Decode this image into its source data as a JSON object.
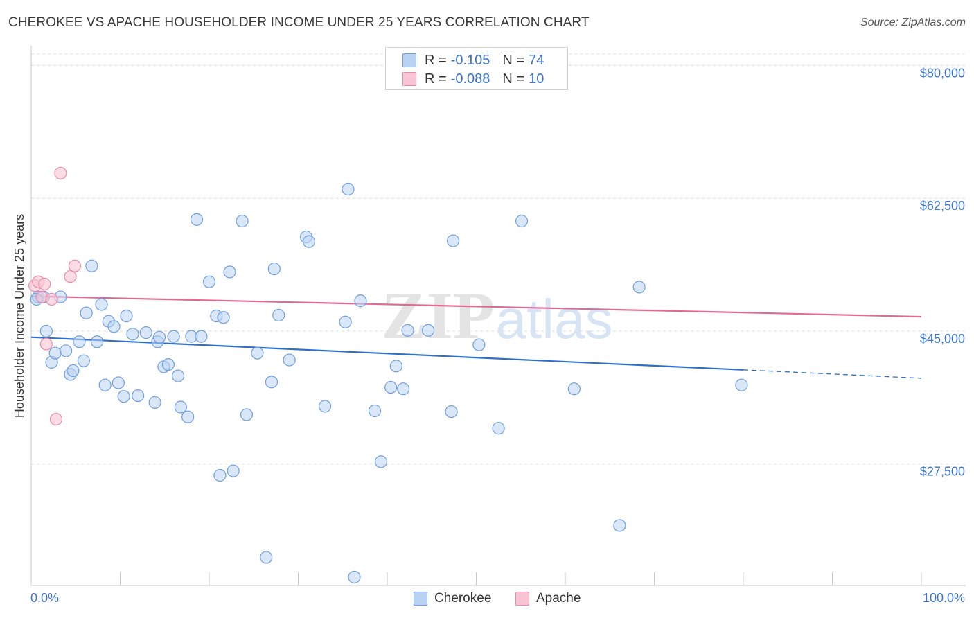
{
  "title": "CHEROKEE VS APACHE HOUSEHOLDER INCOME UNDER 25 YEARS CORRELATION CHART",
  "source": "Source: ZipAtlas.com",
  "watermark": {
    "zip": "ZIP",
    "atlas": "atlas"
  },
  "legend": {
    "cherokee": {
      "r_label": "R =",
      "r_value": "-0.105",
      "n_label": "N =",
      "n_value": "74"
    },
    "apache": {
      "r_label": "R =",
      "r_value": "-0.088",
      "n_label": "N =",
      "n_value": "10"
    }
  },
  "colors": {
    "cherokee_fill": "#b9d3f4",
    "cherokee_stroke": "#6d9ee0",
    "cherokee_line": "#2f6fc8",
    "apache_fill": "#f9c4d4",
    "apache_stroke": "#e98aa8",
    "apache_line": "#e06a94",
    "axis_label": "#3b74c6",
    "grid": "#dcdcdc"
  },
  "chart_data": {
    "type": "scatter",
    "title": "CHEROKEE VS APACHE HOUSEHOLDER INCOME UNDER 25 YEARS CORRELATION CHART",
    "xlabel": "",
    "ylabel": "Householder Income Under 25 years",
    "xlim": [
      0,
      100
    ],
    "ylim": [
      11500,
      81500
    ],
    "x_tick_labels": [
      "0.0%",
      "100.0%"
    ],
    "y_ticks": [
      27500,
      45000,
      62500,
      80000
    ],
    "y_tick_labels": [
      "$27,500",
      "$45,000",
      "$62,500",
      "$80,000"
    ],
    "grid": true,
    "legend_position": "top-center",
    "series": [
      {
        "name": "Cherokee",
        "color": "#6d9ee0",
        "points": [
          [
            0.8,
            49.5
          ],
          [
            1.4,
            49.5
          ],
          [
            1.7,
            45.0
          ],
          [
            2.3,
            40.9
          ],
          [
            2.7,
            42.1
          ],
          [
            3.3,
            49.5
          ],
          [
            3.9,
            42.4
          ],
          [
            4.4,
            39.3
          ],
          [
            4.7,
            39.8
          ],
          [
            5.4,
            43.6
          ],
          [
            5.9,
            41.1
          ],
          [
            6.2,
            47.4
          ],
          [
            6.8,
            53.6
          ],
          [
            7.4,
            43.6
          ],
          [
            7.9,
            48.5
          ],
          [
            8.3,
            37.9
          ],
          [
            8.7,
            46.3
          ],
          [
            9.3,
            45.6
          ],
          [
            9.8,
            38.2
          ],
          [
            10.4,
            36.4
          ],
          [
            10.7,
            47.0
          ],
          [
            11.4,
            44.6
          ],
          [
            12.0,
            36.5
          ],
          [
            12.9,
            44.8
          ],
          [
            13.9,
            35.6
          ],
          [
            14.2,
            43.6
          ],
          [
            14.4,
            44.2
          ],
          [
            14.9,
            40.3
          ],
          [
            15.4,
            40.6
          ],
          [
            16.0,
            44.3
          ],
          [
            16.5,
            39.1
          ],
          [
            16.8,
            35.0
          ],
          [
            17.6,
            33.7
          ],
          [
            18.0,
            44.3
          ],
          [
            18.6,
            59.7
          ],
          [
            19.1,
            44.3
          ],
          [
            20.0,
            51.5
          ],
          [
            20.8,
            47.0
          ],
          [
            21.2,
            26.0
          ],
          [
            21.6,
            46.8
          ],
          [
            22.3,
            52.8
          ],
          [
            22.7,
            26.6
          ],
          [
            23.7,
            59.5
          ],
          [
            24.2,
            34.0
          ],
          [
            25.4,
            42.1
          ],
          [
            27.0,
            38.3
          ],
          [
            27.3,
            53.2
          ],
          [
            27.8,
            47.1
          ],
          [
            29.0,
            41.2
          ],
          [
            30.9,
            57.4
          ],
          [
            31.2,
            56.8
          ],
          [
            33.0,
            35.1
          ],
          [
            35.3,
            46.2
          ],
          [
            35.6,
            63.7
          ],
          [
            36.3,
            12.6
          ],
          [
            37.0,
            49.0
          ],
          [
            38.6,
            34.5
          ],
          [
            39.3,
            27.8
          ],
          [
            40.4,
            37.6
          ],
          [
            41.0,
            40.4
          ],
          [
            41.8,
            37.4
          ],
          [
            42.3,
            45.1
          ],
          [
            44.6,
            45.1
          ],
          [
            47.2,
            34.4
          ],
          [
            47.4,
            56.9
          ],
          [
            50.3,
            43.2
          ],
          [
            52.5,
            32.2
          ],
          [
            55.1,
            59.5
          ],
          [
            61.0,
            37.4
          ],
          [
            66.1,
            19.4
          ],
          [
            68.3,
            50.8
          ],
          [
            79.8,
            37.9
          ],
          [
            26.4,
            15.2
          ],
          [
            0.6,
            49.2
          ]
        ]
      },
      {
        "name": "Apache",
        "color": "#e98aa8",
        "points": [
          [
            0.4,
            51.0
          ],
          [
            0.8,
            51.5
          ],
          [
            1.2,
            49.5
          ],
          [
            1.5,
            51.2
          ],
          [
            1.7,
            43.3
          ],
          [
            2.3,
            49.2
          ],
          [
            2.8,
            33.4
          ],
          [
            3.3,
            65.8
          ],
          [
            4.4,
            52.2
          ],
          [
            4.9,
            53.6
          ]
        ]
      }
    ],
    "trendlines": [
      {
        "name": "Cherokee",
        "x": [
          0,
          80
        ],
        "y": [
          44.2,
          39.9
        ],
        "dashed_extension_to": [
          100,
          38.8
        ]
      },
      {
        "name": "Apache",
        "x": [
          0,
          100
        ],
        "y": [
          49.6,
          46.9
        ]
      }
    ],
    "point_value_scale": "thousands of dollars",
    "bottom_legend": [
      "Cherokee",
      "Apache"
    ]
  }
}
